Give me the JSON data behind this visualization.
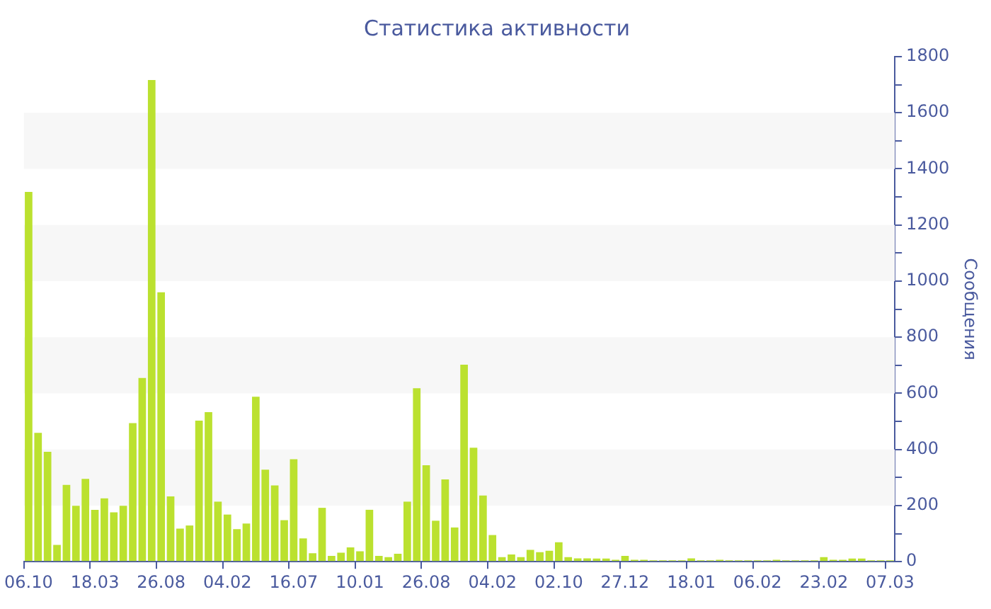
{
  "chart_data": {
    "type": "bar",
    "title": "Статистика активности",
    "ylabel": "Сообщения",
    "categories": [
      "06.10",
      null,
      null,
      null,
      null,
      null,
      null,
      "18.03",
      null,
      null,
      null,
      null,
      null,
      null,
      "26.08",
      null,
      null,
      null,
      null,
      null,
      null,
      "04.02",
      null,
      null,
      null,
      null,
      null,
      null,
      "16.07",
      null,
      null,
      null,
      null,
      null,
      null,
      "10.01",
      null,
      null,
      null,
      null,
      null,
      null,
      "26.08",
      null,
      null,
      null,
      null,
      null,
      null,
      "04.02",
      null,
      null,
      null,
      null,
      null,
      null,
      "02.10",
      null,
      null,
      null,
      null,
      null,
      null,
      "27.12",
      null,
      null,
      null,
      null,
      null,
      null,
      "18.01",
      null,
      null,
      null,
      null,
      null,
      null,
      "06.02",
      null,
      null,
      null,
      null,
      null,
      null,
      "23.02",
      null,
      null,
      null,
      null,
      null,
      null,
      "07.03"
    ],
    "values": [
      1318,
      459,
      392,
      60,
      274,
      199,
      295,
      185,
      226,
      176,
      199,
      494,
      655,
      1717,
      960,
      233,
      118,
      129,
      503,
      533,
      214,
      168,
      116,
      136,
      588,
      328,
      272,
      148,
      365,
      83,
      30,
      192,
      21,
      32,
      51,
      37,
      185,
      21,
      16,
      28,
      214,
      618,
      344,
      146,
      293,
      122,
      702,
      406,
      236,
      95,
      16,
      26,
      16,
      42,
      34,
      39,
      69,
      16,
      12,
      12,
      11,
      11,
      7,
      21,
      7,
      7,
      5,
      5,
      5,
      5,
      12,
      5,
      5,
      7,
      5,
      5,
      5,
      5,
      5,
      7,
      5,
      5,
      5,
      5,
      16,
      7,
      7,
      11,
      11,
      5,
      5,
      5
    ],
    "color": "#bbe12f",
    "ylim": [
      0,
      1800
    ],
    "yticks": [
      0,
      {
        "value": 100,
        "label": null
      },
      200,
      {
        "value": 300,
        "label": null
      },
      400,
      {
        "value": 500,
        "label": null
      },
      600,
      {
        "value": 700,
        "label": null
      },
      800,
      {
        "value": 900,
        "label": null
      },
      1000,
      {
        "value": 1100,
        "label": null
      },
      1200,
      {
        "value": 1300,
        "label": null
      },
      1400,
      {
        "value": 1500,
        "label": null
      },
      1600,
      {
        "value": 1700,
        "label": null
      },
      1800
    ],
    "bands": [
      {
        "axis": "y",
        "from": 200,
        "to": 400,
        "color": "#f7f7f7"
      },
      {
        "axis": "y",
        "from": 600,
        "to": 800,
        "color": "#f7f7f7"
      },
      {
        "axis": "y",
        "from": 1000,
        "to": 1200,
        "color": "#f7f7f7"
      },
      {
        "axis": "y",
        "from": 1400,
        "to": 1600,
        "color": "#f7f7f7"
      }
    ]
  }
}
